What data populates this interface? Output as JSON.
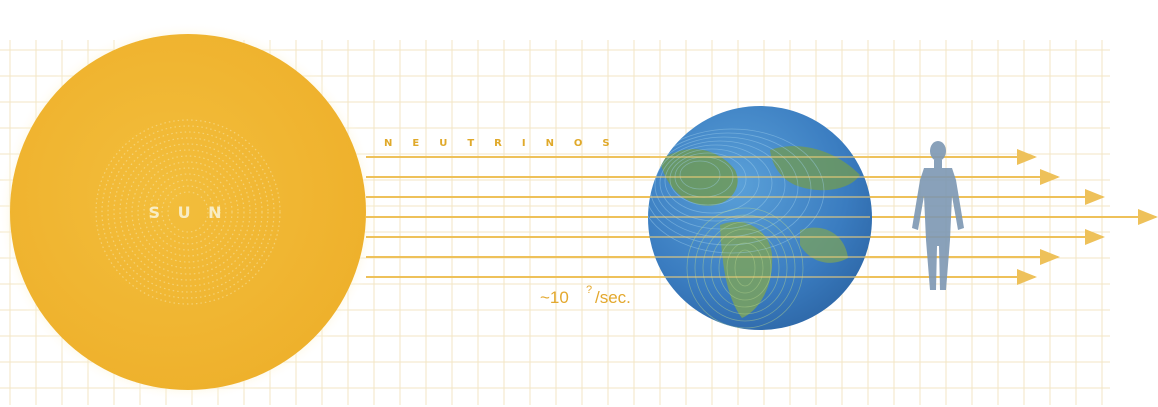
{
  "diagram": {
    "sun_label": "S U N",
    "neutrino_label": "NEUTRINOS",
    "rate_prefix": "~10",
    "rate_exponent": "?",
    "rate_suffix": "/sec.",
    "colors": {
      "sun": "#f0b531",
      "sun_glow": "#fbe7a4",
      "grid": "#f3e6c4",
      "arrow": "#eec15a",
      "earth_ocean": "#3f82c8",
      "earth_land": "#6f9a57",
      "human": "#7d97b3"
    },
    "icons": [
      "sun-icon",
      "earth-icon",
      "human-figure-icon",
      "arrow-icon"
    ]
  }
}
